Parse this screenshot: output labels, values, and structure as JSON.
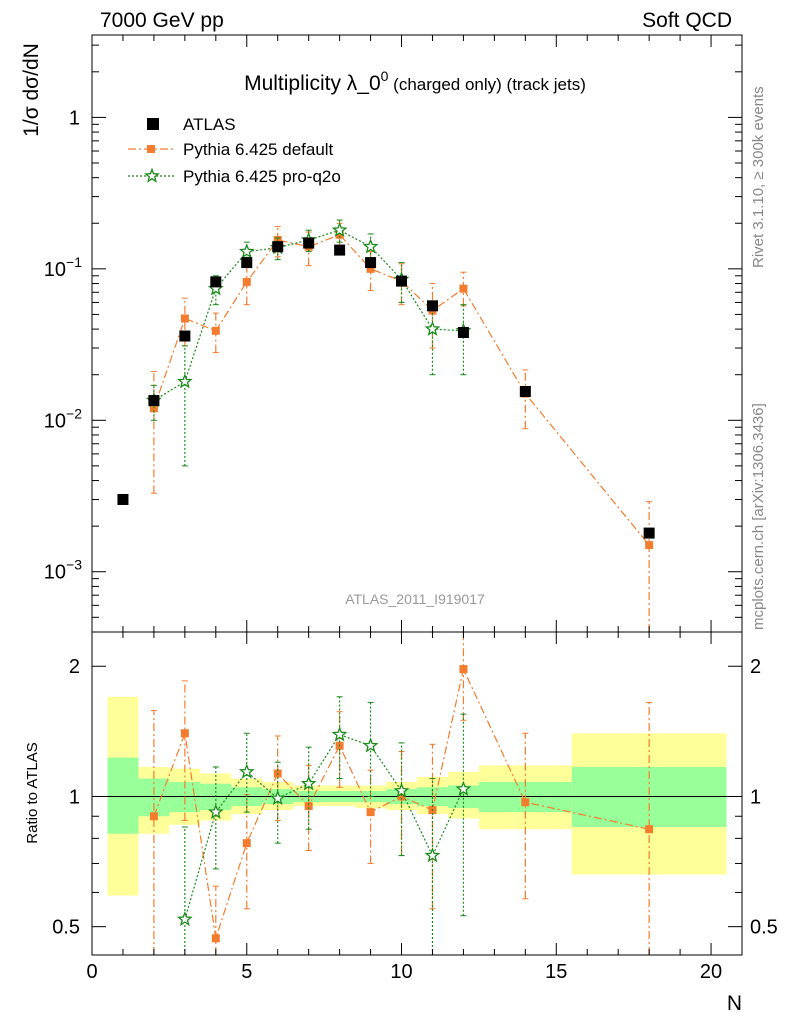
{
  "header": {
    "left": "7000 GeV pp",
    "right": "Soft QCD"
  },
  "side_text": {
    "rivet": "Rivet 3.1.10, ≥ 300k events",
    "site": "mcplots.cern.ch [arXiv:1306.3436]"
  },
  "chart_data": [
    {
      "type": "scatter",
      "title": "Multiplicity λ_0",
      "title_sup": "0",
      "title_suffix": " (charged only) (track jets)",
      "analysis_label": "ATLAS_2011_I919017",
      "xlabel": "N",
      "ylabel": "1/σ dσ/dN",
      "xlim": [
        0,
        21
      ],
      "ylim": [
        0.0004,
        3.5
      ],
      "yscale": "log",
      "yticks": [
        {
          "value": 0.001,
          "mant": "10",
          "exp": "−3"
        },
        {
          "value": 0.01,
          "mant": "10",
          "exp": "−2"
        },
        {
          "value": 0.1,
          "mant": "10",
          "exp": "−1"
        },
        {
          "value": 1,
          "mant": "1",
          "exp": ""
        }
      ],
      "legend_position": "top-left",
      "series": [
        {
          "name": "ATLAS",
          "color": "#000000",
          "marker": "square",
          "x": [
            1,
            2,
            3,
            4,
            5,
            6,
            7,
            8,
            9,
            10,
            11,
            12,
            14,
            18
          ],
          "y": [
            0.003,
            0.0135,
            0.036,
            0.082,
            0.11,
            0.14,
            0.148,
            0.133,
            0.11,
            0.083,
            0.057,
            0.038,
            0.0155,
            0.0018
          ]
        },
        {
          "name": "Pythia 6.425 default",
          "color": "#f47c2e",
          "marker": "square",
          "line": "dashdot",
          "x": [
            2,
            3,
            4,
            5,
            6,
            7,
            8,
            9,
            10,
            11,
            12,
            14,
            18
          ],
          "y": [
            0.012,
            0.047,
            0.039,
            0.082,
            0.155,
            0.14,
            0.168,
            0.1,
            0.083,
            0.053,
            0.074,
            0.015,
            0.0015
          ],
          "err_lo": [
            0.0033,
            0.031,
            0.028,
            0.058,
            0.12,
            0.105,
            0.14,
            0.072,
            0.058,
            0.03,
            0.057,
            0.0088,
            0.0004
          ],
          "err_hi": [
            0.021,
            0.064,
            0.051,
            0.107,
            0.19,
            0.175,
            0.2,
            0.13,
            0.108,
            0.08,
            0.095,
            0.0215,
            0.0029
          ]
        },
        {
          "name": "Pythia 6.425 pro-q2o",
          "color": "#1a8a1a",
          "marker": "star",
          "line": "dotted",
          "x": [
            2,
            3,
            4,
            5,
            6,
            7,
            8,
            9,
            10,
            11,
            12
          ],
          "y": [
            0.0135,
            0.018,
            0.074,
            0.13,
            0.138,
            0.155,
            0.18,
            0.14,
            0.085,
            0.04,
            0.039
          ],
          "err_lo": [
            0.01,
            0.005,
            0.058,
            0.11,
            0.115,
            0.13,
            0.15,
            0.11,
            0.06,
            0.02,
            0.02
          ],
          "err_hi": [
            0.017,
            0.031,
            0.09,
            0.15,
            0.16,
            0.18,
            0.21,
            0.17,
            0.11,
            0.06,
            0.058
          ]
        }
      ]
    },
    {
      "type": "scatter",
      "ylabel": "Ratio to ATLAS",
      "xlabel": "N",
      "xlim": [
        0,
        21
      ],
      "ylim": [
        0.43,
        2.4
      ],
      "yscale": "log",
      "xticks": [
        "0",
        "5",
        "10",
        "15",
        "20"
      ],
      "yticks": [
        "0.5",
        "1",
        "2"
      ],
      "reference_line": 1,
      "bands": [
        {
          "x": [
            0.5,
            1.5
          ],
          "green": [
            0.82,
            1.23
          ],
          "yellow": [
            0.59,
            1.7
          ]
        },
        {
          "x": [
            1.5,
            2.5
          ],
          "green": [
            0.9,
            1.1
          ],
          "yellow": [
            0.82,
            1.17
          ]
        },
        {
          "x": [
            2.5,
            3.5
          ],
          "green": [
            0.92,
            1.08
          ],
          "yellow": [
            0.86,
            1.16
          ]
        },
        {
          "x": [
            3.5,
            4.5
          ],
          "green": [
            0.93,
            1.07
          ],
          "yellow": [
            0.88,
            1.13
          ]
        },
        {
          "x": [
            4.5,
            5.5
          ],
          "green": [
            0.95,
            1.05
          ],
          "yellow": [
            0.91,
            1.1
          ]
        },
        {
          "x": [
            5.5,
            6.5
          ],
          "green": [
            0.96,
            1.04
          ],
          "yellow": [
            0.93,
            1.08
          ]
        },
        {
          "x": [
            6.5,
            7.5
          ],
          "green": [
            0.97,
            1.03
          ],
          "yellow": [
            0.95,
            1.06
          ]
        },
        {
          "x": [
            7.5,
            8.5
          ],
          "green": [
            0.97,
            1.03
          ],
          "yellow": [
            0.95,
            1.06
          ]
        },
        {
          "x": [
            8.5,
            9.5
          ],
          "green": [
            0.97,
            1.03
          ],
          "yellow": [
            0.94,
            1.06
          ]
        },
        {
          "x": [
            9.5,
            10.5
          ],
          "green": [
            0.96,
            1.04
          ],
          "yellow": [
            0.93,
            1.08
          ]
        },
        {
          "x": [
            10.5,
            11.5
          ],
          "green": [
            0.95,
            1.05
          ],
          "yellow": [
            0.91,
            1.11
          ]
        },
        {
          "x": [
            11.5,
            12.5
          ],
          "green": [
            0.94,
            1.06
          ],
          "yellow": [
            0.89,
            1.14
          ]
        },
        {
          "x": [
            12.5,
            15.5
          ],
          "green": [
            0.92,
            1.08
          ],
          "yellow": [
            0.84,
            1.18
          ]
        },
        {
          "x": [
            15.5,
            20.5
          ],
          "green": [
            0.85,
            1.17
          ],
          "yellow": [
            0.66,
            1.4
          ]
        }
      ],
      "series": [
        {
          "name": "Pythia 6.425 default",
          "color": "#f47c2e",
          "marker": "square",
          "line": "dashdot",
          "x": [
            2,
            3,
            4,
            5,
            6,
            7,
            8,
            9,
            10,
            11,
            12,
            14,
            18
          ],
          "y": [
            0.9,
            1.4,
            0.47,
            0.78,
            1.13,
            0.95,
            1.31,
            0.92,
            1.0,
            0.93,
            1.97,
            0.97,
            0.84
          ],
          "err_lo": [
            0.3,
            0.88,
            0.38,
            0.55,
            0.88,
            0.75,
            1.05,
            0.7,
            0.73,
            0.55,
            1.5,
            0.58,
            0.3
          ],
          "err_hi": [
            1.58,
            1.85,
            0.62,
            1.01,
            1.38,
            1.18,
            1.57,
            1.15,
            1.27,
            1.32,
            2.4,
            1.4,
            1.65
          ]
        },
        {
          "name": "Pythia 6.425 pro-q2o",
          "color": "#1a8a1a",
          "marker": "star",
          "line": "dotted",
          "x": [
            3,
            4,
            5,
            6,
            7,
            8,
            9,
            10,
            11,
            12
          ],
          "y": [
            0.52,
            0.92,
            1.14,
            0.99,
            1.07,
            1.39,
            1.31,
            1.03,
            0.73,
            1.04
          ],
          "err_lo": [
            0.3,
            0.68,
            0.92,
            0.78,
            0.84,
            1.1,
            1.0,
            0.73,
            0.35,
            0.53
          ],
          "err_hi": [
            0.85,
            1.17,
            1.4,
            1.2,
            1.3,
            1.7,
            1.65,
            1.33,
            1.1,
            1.55
          ]
        }
      ]
    }
  ]
}
